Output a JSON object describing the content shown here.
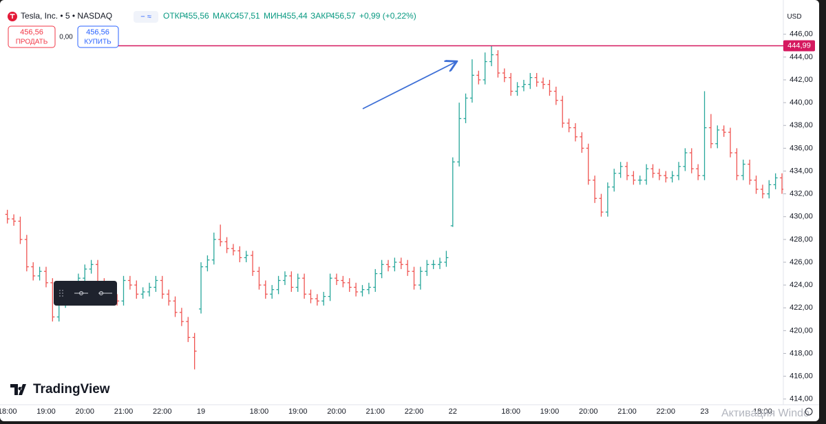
{
  "header": {
    "symbol": "Tesla, Inc. • 5 • NASDAQ",
    "stats": [
      {
        "label": "ОТКР",
        "value": "455,56"
      },
      {
        "label": "МАКС",
        "value": "457,51"
      },
      {
        "label": "МИН",
        "value": "455,44"
      },
      {
        "label": "ЗАКР",
        "value": "456,57"
      }
    ],
    "change": "+0,99 (+0,22%)"
  },
  "trade": {
    "sell_price": "456,56",
    "sell_label": "ПРОДАТЬ",
    "spread": "0,00",
    "buy_price": "456,56",
    "buy_label": "КУПИТЬ"
  },
  "currency": "USD",
  "brand": "TradingView",
  "watermark": "Активация Windo",
  "chart_data": {
    "type": "ohlc",
    "categories": [
      "18:00",
      null,
      null,
      null,
      null,
      null,
      "19:00",
      null,
      null,
      null,
      null,
      null,
      "20:00",
      null,
      null,
      null,
      null,
      null,
      "21:00",
      null,
      null,
      null,
      null,
      null,
      "22:00",
      null,
      null,
      null,
      null,
      null,
      "19",
      null,
      null,
      null,
      null,
      null,
      null,
      null,
      null,
      "18:00",
      null,
      null,
      null,
      null,
      null,
      "19:00",
      null,
      null,
      null,
      null,
      null,
      "20:00",
      null,
      null,
      null,
      null,
      null,
      "21:00",
      null,
      null,
      null,
      null,
      null,
      "22:00",
      null,
      null,
      null,
      null,
      null,
      "22",
      null,
      null,
      null,
      null,
      null,
      null,
      null,
      null,
      "18:00",
      null,
      null,
      null,
      null,
      null,
      "19:00",
      null,
      null,
      null,
      null,
      null,
      "20:00",
      null,
      null,
      null,
      null,
      null,
      "21:00",
      null,
      null,
      null,
      null,
      null,
      "22:00",
      null,
      null,
      null,
      null,
      null,
      "23",
      null,
      null,
      null,
      null,
      null,
      null,
      null,
      null,
      "18:00",
      null,
      null,
      null
    ],
    "open": [
      430.2,
      429.8,
      429.6,
      428,
      425.6,
      424.8,
      425.2,
      424.2,
      421.2,
      422.4,
      422.8,
      423.6,
      424.6,
      425.4,
      425.8,
      424.2,
      423.6,
      422.8,
      422.6,
      424.4,
      424,
      423.2,
      423.4,
      423.8,
      424.4,
      423.2,
      422.6,
      421.6,
      420.8,
      419.4,
      421.9,
      425.6,
      426.2,
      428,
      427.8,
      427.2,
      427,
      426.4,
      426.6,
      425.2,
      424,
      423.2,
      423.6,
      424.4,
      424.8,
      423.8,
      424.6,
      423.2,
      422.8,
      422.6,
      423,
      424.6,
      424.4,
      424.2,
      423.8,
      423.4,
      423.6,
      423.8,
      425,
      425.8,
      425.6,
      426,
      425.8,
      425.2,
      424,
      425.2,
      425.8,
      425.8,
      426,
      429.2,
      434.8,
      438.6,
      440.4,
      442.4,
      442,
      443.6,
      444.2,
      442.6,
      442.2,
      441,
      441.4,
      441.6,
      442.2,
      441.8,
      441.6,
      441,
      440.2,
      438.2,
      437.8,
      437,
      436,
      433.2,
      431.6,
      430.4,
      432.6,
      433.8,
      434.4,
      433.6,
      433.2,
      433.2,
      434.2,
      433.8,
      433.6,
      433.4,
      433.6,
      434.4,
      435.6,
      434.2,
      433.6,
      437.8,
      436.4,
      437.6,
      437.4,
      435.6,
      433.6,
      434.6,
      433.2,
      432.4,
      432,
      432.8,
      433.4
    ],
    "high": [
      430.6,
      430.2,
      430,
      428.4,
      426,
      425.6,
      425.6,
      424.6,
      422.8,
      423.2,
      424,
      425,
      425.8,
      426.2,
      426.2,
      424.6,
      424,
      423.2,
      424.8,
      424.8,
      424.4,
      423.8,
      424.2,
      424.8,
      424.8,
      423.6,
      423,
      422,
      421.2,
      419.8,
      426,
      426.6,
      428.6,
      429.3,
      428.2,
      427.6,
      427.4,
      427,
      427,
      425.6,
      424.4,
      424,
      424.8,
      425.2,
      425.2,
      425,
      425,
      423.6,
      423.2,
      423.4,
      425,
      425,
      424.8,
      424.6,
      424.2,
      424,
      424.2,
      425.4,
      426.2,
      426.2,
      426.4,
      426.4,
      426.2,
      425.6,
      425.6,
      426.2,
      426.2,
      426.4,
      427,
      435.2,
      440,
      440.8,
      443.8,
      442.8,
      444.4,
      445,
      444.6,
      443,
      442.6,
      441.8,
      442,
      442.6,
      442.6,
      442.2,
      442,
      441.4,
      440.6,
      438.6,
      438.2,
      437.4,
      436.4,
      433.6,
      432,
      433,
      434.2,
      434.8,
      434.8,
      434,
      433.6,
      434.6,
      434.6,
      434.2,
      434,
      434,
      434.8,
      436,
      436,
      434.6,
      441,
      439,
      438,
      438,
      437.8,
      436,
      435,
      435,
      433.6,
      432.8,
      433.2,
      433.8,
      433.8
    ],
    "low": [
      429.4,
      429.2,
      427.6,
      425.2,
      424.4,
      424.4,
      423.8,
      420.8,
      420.8,
      422,
      422.4,
      423.2,
      424.2,
      425,
      423.8,
      423.2,
      422.4,
      422.2,
      422.2,
      423.6,
      422.8,
      422.8,
      423,
      423.4,
      422.8,
      422.2,
      421.2,
      420.4,
      419,
      416.6,
      421.5,
      425.2,
      425.8,
      427.4,
      426.8,
      426.6,
      426,
      426,
      424.8,
      423.6,
      422.8,
      422.8,
      423.2,
      424,
      423.4,
      423.4,
      422.8,
      422.4,
      422.2,
      422.2,
      422.6,
      424,
      423.8,
      423.4,
      423,
      423,
      423.2,
      423.4,
      424.6,
      425.2,
      425.2,
      425.4,
      424.8,
      423.6,
      423.6,
      424.8,
      425.4,
      425.4,
      425.6,
      429.1,
      434.4,
      438.2,
      440,
      441.6,
      441.6,
      443.2,
      442.2,
      441.8,
      440.6,
      440.6,
      441,
      441.2,
      441.4,
      441.2,
      440.6,
      439.8,
      437.8,
      437.4,
      436.6,
      435.6,
      432.8,
      431.2,
      430,
      430,
      432.2,
      433.4,
      433.2,
      432.8,
      432.8,
      432.8,
      433.4,
      433.2,
      433,
      433,
      433.2,
      434,
      433.8,
      433.2,
      433.2,
      436,
      436,
      437,
      435.2,
      433.2,
      433.2,
      432.8,
      432,
      431.6,
      431.6,
      432.4,
      432
    ],
    "close": [
      429.8,
      429.6,
      428,
      425.6,
      424.8,
      425.2,
      424.2,
      421.2,
      422.4,
      422.8,
      423.6,
      424.6,
      425.4,
      425.8,
      424.2,
      423.6,
      422.8,
      422.6,
      424.4,
      424,
      423.2,
      423.4,
      423.8,
      424.4,
      423.2,
      422.6,
      421.6,
      420.8,
      419.4,
      418.2,
      425.6,
      426.2,
      428,
      427.8,
      427.2,
      427,
      426.4,
      426.6,
      425.2,
      424,
      423.2,
      423.6,
      424.4,
      424.8,
      423.8,
      424.6,
      423.2,
      422.8,
      422.6,
      423,
      424.6,
      424.4,
      424.2,
      423.8,
      423.4,
      423.6,
      423.8,
      425,
      425.8,
      425.6,
      426,
      425.8,
      425.2,
      424,
      425.2,
      425.8,
      425.8,
      426,
      426.4,
      434.8,
      438.6,
      440.4,
      442.4,
      442,
      443.6,
      444.2,
      442.6,
      442.2,
      441,
      441.4,
      441.6,
      442.2,
      441.8,
      441.6,
      441,
      440.2,
      438.2,
      437.8,
      437,
      436,
      433.2,
      431.6,
      430.4,
      432.6,
      433.8,
      434.4,
      433.6,
      433.2,
      433.2,
      434.2,
      433.8,
      433.6,
      433.4,
      433.6,
      434.4,
      435.6,
      434.2,
      433.6,
      437.8,
      436.4,
      437.6,
      437.4,
      435.6,
      433.6,
      434.6,
      433.2,
      432.4,
      432,
      432.8,
      433.4,
      432.4
    ],
    "up_color": "#26a69a",
    "down_color": "#ef5350",
    "ylim": [
      413.5,
      448.4
    ],
    "yticks": [
      {
        "value": 414,
        "label": "414,00"
      },
      {
        "value": 416,
        "label": "416,00"
      },
      {
        "value": 418,
        "label": "418,00"
      },
      {
        "value": 420,
        "label": "420,00"
      },
      {
        "value": 422,
        "label": "422,00"
      },
      {
        "value": 424,
        "label": "424,00"
      },
      {
        "value": 426,
        "label": "426,00"
      },
      {
        "value": 428,
        "label": "428,00"
      },
      {
        "value": 430,
        "label": "430,00"
      },
      {
        "value": 432,
        "label": "432,00"
      },
      {
        "value": 434,
        "label": "434,00"
      },
      {
        "value": 436,
        "label": "436,00"
      },
      {
        "value": 438,
        "label": "438,00"
      },
      {
        "value": 440,
        "label": "440,00"
      },
      {
        "value": 442,
        "label": "442,00"
      },
      {
        "value": 444,
        "label": "444,00"
      },
      {
        "value": 446,
        "label": "446,00"
      }
    ],
    "price_line": {
      "value": 444.99,
      "label": "444,99",
      "color": "#d5195f"
    }
  }
}
